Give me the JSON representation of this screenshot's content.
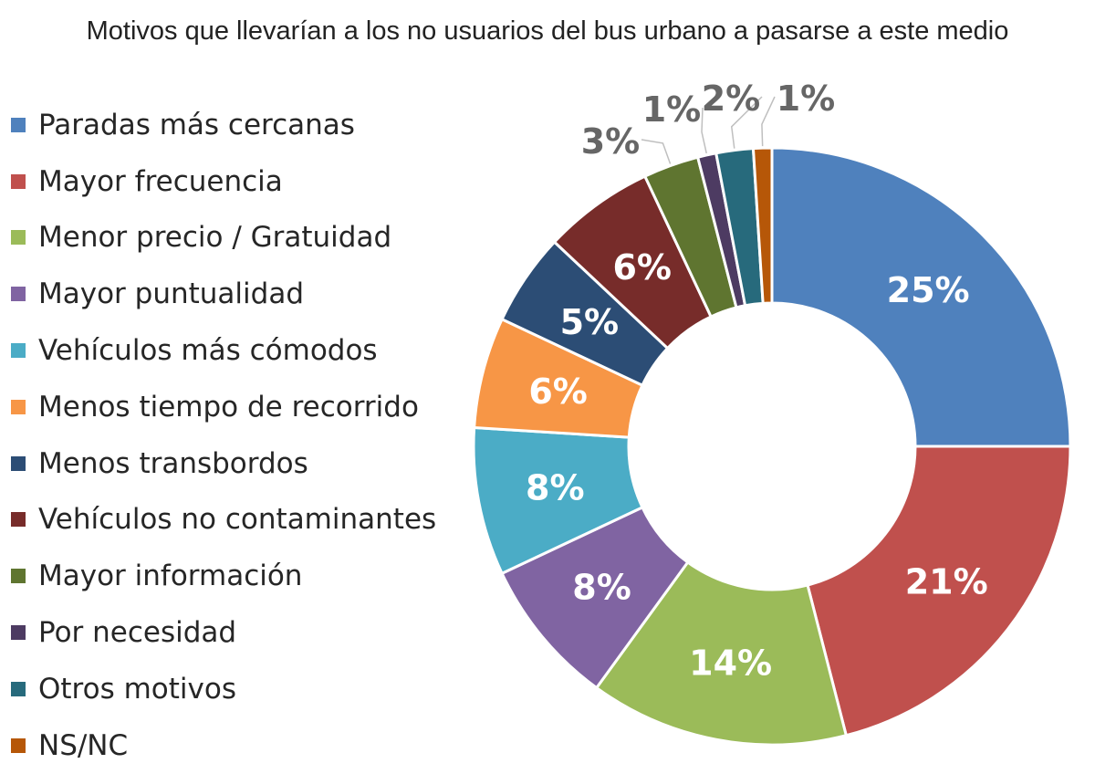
{
  "chart_data": {
    "type": "pie",
    "variant": "donut",
    "title": "Motivos que llevarían a los no usuarios del bus urbano a pasarse a este medio",
    "legend_position": "left",
    "categories": [
      "Paradas más cercanas",
      "Mayor frecuencia",
      "Menor precio / Gratuidad",
      "Mayor puntualidad",
      "Vehículos más cómodos",
      "Menos tiempo de recorrido",
      "Menos transbordos",
      "Vehículos no contaminantes",
      "Mayor información",
      "Por necesidad",
      "Otros motivos",
      "NS/NC"
    ],
    "values": [
      25,
      21,
      14,
      8,
      8,
      6,
      5,
      6,
      3,
      1,
      2,
      1
    ],
    "labels": [
      "25%",
      "21%",
      "14%",
      "8%",
      "8%",
      "6%",
      "5%",
      "6%",
      "3%",
      "1%",
      "2%",
      "1%"
    ],
    "colors": [
      "#4f81bd",
      "#c0504d",
      "#9bbb59",
      "#8064a2",
      "#4bacc6",
      "#f79646",
      "#2c4d75",
      "#772c2a",
      "#5f7530",
      "#4d3b62",
      "#276a7c",
      "#b65708"
    ],
    "inner_label_color": "#ffffff",
    "outer_label_color": "#666666"
  }
}
